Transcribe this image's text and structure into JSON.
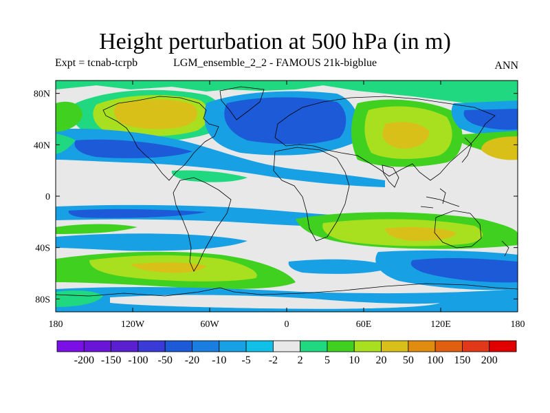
{
  "header": {
    "title": "Height perturbation at 500 hPa (in m)",
    "expt": "Expt = tcnab-tcrpb",
    "ensemble": "LGM_ensemble_2_2 - FAMOUS 21k-bigblue",
    "season": "ANN"
  },
  "map": {
    "type": "filled-contour",
    "projection": "cylindrical-equidistant",
    "lon_range": [
      -180,
      180
    ],
    "lat_range": [
      -90,
      90
    ],
    "lat_ticks": [
      {
        "value": 80,
        "label": "80N"
      },
      {
        "value": 40,
        "label": "40N"
      },
      {
        "value": 0,
        "label": "0"
      },
      {
        "value": -40,
        "label": "40S"
      },
      {
        "value": -80,
        "label": "80S"
      }
    ],
    "lon_ticks": [
      {
        "value": -180,
        "label": "180"
      },
      {
        "value": -120,
        "label": "120W"
      },
      {
        "value": -60,
        "label": "60W"
      },
      {
        "value": 0,
        "label": "0"
      },
      {
        "value": 60,
        "label": "60E"
      },
      {
        "value": 120,
        "label": "120E"
      },
      {
        "value": 180,
        "label": "180"
      }
    ],
    "background_color": "#e8e8e8"
  },
  "colorbar": {
    "levels": [
      "-200",
      "-150",
      "-100",
      "-50",
      "-20",
      "-10",
      "-5",
      "-2",
      "2",
      "5",
      "10",
      "20",
      "50",
      "100",
      "150",
      "200"
    ],
    "colors": [
      "#7a10e6",
      "#6a14d8",
      "#5a20d0",
      "#3a3ad6",
      "#1c5ad8",
      "#1a7ee0",
      "#18a0e4",
      "#10c0e8",
      "#e8e8e8",
      "#20d880",
      "#40d020",
      "#a8e020",
      "#d8c018",
      "#e08c10",
      "#e06010",
      "#e03818",
      "#e00000"
    ]
  }
}
